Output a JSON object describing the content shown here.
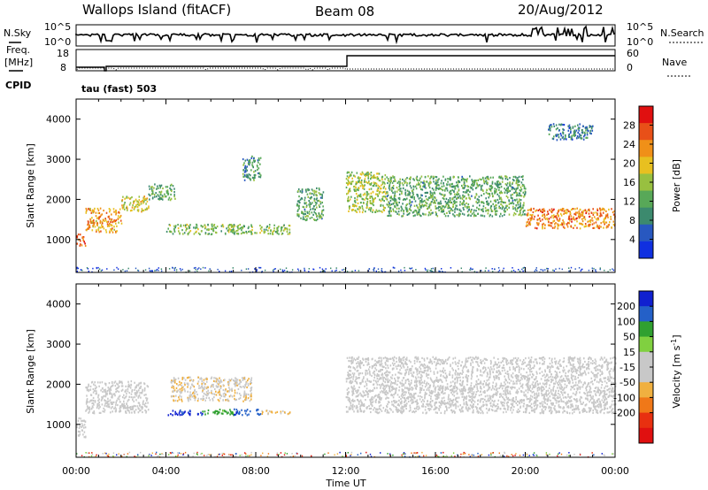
{
  "header": {
    "station": "Wallops Island (fitACF)",
    "beam": "Beam 08",
    "date": "20/Aug/2012"
  },
  "top_panel": {
    "left_label": "N.Sky",
    "left_ticks": [
      "10^5",
      "10^0"
    ],
    "right_label": "N.Search",
    "right_ticks": [
      "10^5",
      "10^0"
    ]
  },
  "freq_panel": {
    "left_label_1": "Freq.",
    "left_label_2": "[MHz]",
    "left_ticks": [
      "18",
      "8"
    ],
    "right_label": "Nave",
    "right_ticks": [
      "60",
      "0"
    ],
    "cpid_label": "CPID",
    "cpid_text": "tau (fast) 503"
  },
  "colors": {
    "power": [
      "#1030e0",
      "#2858c0",
      "#3c8a6e",
      "#58a858",
      "#98c040",
      "#e8c020",
      "#f09018",
      "#e85018",
      "#e01010"
    ],
    "velocity": [
      "#1020d0",
      "#2460c8",
      "#30a030",
      "#80d040",
      "#c8c8c8",
      "#c8c8c8",
      "#f0b040",
      "#f07818",
      "#e83010",
      "#e01010"
    ]
  },
  "chart_data": [
    {
      "type": "heatmap",
      "title": "",
      "xlabel": "",
      "ylabel": "Slant Range [km]",
      "xlim": [
        0,
        24
      ],
      "ylim": [
        180,
        4500
      ],
      "x_ticks": [],
      "y_ticks": [
        1000,
        2000,
        3000,
        4000
      ],
      "colorbar": {
        "label": "Power [dB]",
        "range": [
          0,
          32
        ],
        "ticks": [
          4,
          8,
          12,
          16,
          20,
          24,
          28
        ]
      },
      "echo_bands": [
        {
          "time": [
            0.0,
            0.4
          ],
          "range": [
            850,
            1150
          ],
          "value": 26
        },
        {
          "time": [
            0.4,
            2.0
          ],
          "range": [
            1200,
            1800
          ],
          "value": 22
        },
        {
          "time": [
            2.0,
            3.2
          ],
          "range": [
            1700,
            2100
          ],
          "value": 18
        },
        {
          "time": [
            3.2,
            4.4
          ],
          "range": [
            2000,
            2400
          ],
          "value": 12
        },
        {
          "time": [
            4.0,
            9.5
          ],
          "range": [
            1150,
            1400
          ],
          "value": 14
        },
        {
          "time": [
            7.4,
            8.2
          ],
          "range": [
            2500,
            3100
          ],
          "value": 10
        },
        {
          "time": [
            9.8,
            11.0
          ],
          "range": [
            1500,
            2300
          ],
          "value": 12
        },
        {
          "time": [
            12.0,
            13.8
          ],
          "range": [
            1700,
            2700
          ],
          "value": 16
        },
        {
          "time": [
            13.8,
            20.0
          ],
          "range": [
            1600,
            2600
          ],
          "value": 12
        },
        {
          "time": [
            20.0,
            24.0
          ],
          "range": [
            1300,
            1800
          ],
          "value": 24
        },
        {
          "time": [
            21.0,
            23.0
          ],
          "range": [
            3500,
            3900
          ],
          "value": 8
        }
      ]
    },
    {
      "type": "heatmap",
      "title": "",
      "xlabel": "Time UT",
      "ylabel": "Slant Range [km]",
      "xlim": [
        0,
        24
      ],
      "ylim": [
        180,
        4500
      ],
      "x_ticks": [
        "00:00",
        "04:00",
        "08:00",
        "12:00",
        "16:00",
        "20:00",
        "00:00"
      ],
      "y_ticks": [
        1000,
        2000,
        3000,
        4000
      ],
      "colorbar": {
        "label": "Velocity [m s^-1]",
        "range": [
          -250,
          250
        ],
        "ticks": [
          200,
          100,
          50,
          15,
          -15,
          -50,
          -100,
          -200
        ]
      },
      "echo_bands": [
        {
          "time": [
            0.0,
            0.4
          ],
          "range": [
            700,
            1200
          ],
          "value": 0
        },
        {
          "time": [
            0.4,
            3.2
          ],
          "range": [
            1300,
            2100
          ],
          "value": 0
        },
        {
          "time": [
            4.0,
            5.6
          ],
          "range": [
            1250,
            1380
          ],
          "value": 220
        },
        {
          "time": [
            5.6,
            7.0
          ],
          "range": [
            1250,
            1400
          ],
          "value": 120
        },
        {
          "time": [
            7.0,
            8.2
          ],
          "range": [
            1250,
            1400
          ],
          "value": 180
        },
        {
          "time": [
            8.2,
            9.5
          ],
          "range": [
            1280,
            1380
          ],
          "value": -60
        },
        {
          "time": [
            4.2,
            7.8
          ],
          "range": [
            1600,
            2200
          ],
          "value": -40
        },
        {
          "time": [
            12.0,
            24.0
          ],
          "range": [
            1300,
            2700
          ],
          "value": 0
        }
      ]
    }
  ]
}
